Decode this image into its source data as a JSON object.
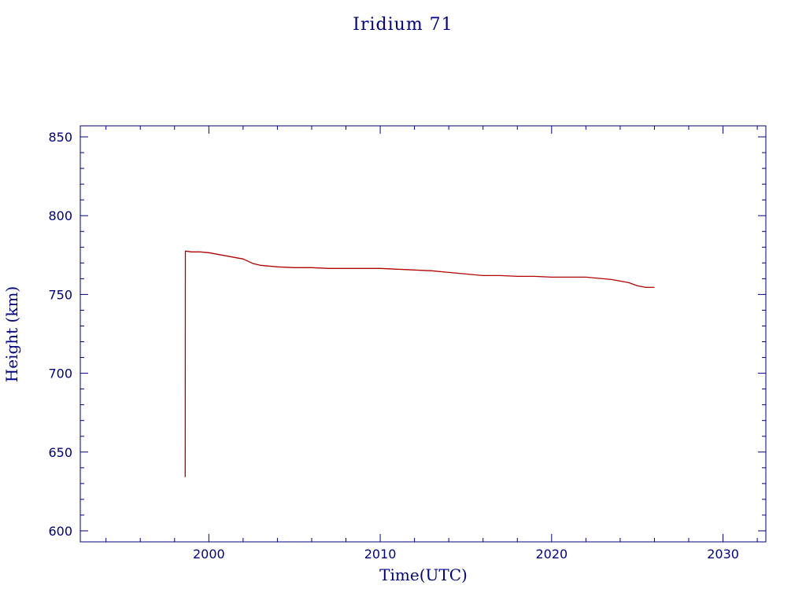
{
  "chart_data": {
    "type": "line",
    "title": "Iridium 71",
    "xlabel": "Time(UTC)",
    "ylabel": "Height (km)",
    "xlim": [
      1992.5,
      2032.5
    ],
    "ylim": [
      593,
      857
    ],
    "x_ticks": [
      2000,
      2010,
      2020,
      2030
    ],
    "x_tick_labels": [
      "2000",
      "2010",
      "2020",
      "2030"
    ],
    "y_ticks": [
      600,
      650,
      700,
      750,
      800,
      850
    ],
    "y_tick_labels": [
      "600",
      "650",
      "700",
      "750",
      "800",
      "850"
    ],
    "grid": false,
    "legend": "none",
    "colors": {
      "axes": "#000080",
      "series": "#b00000"
    },
    "series": [
      {
        "x": [
          1998.62,
          1998.63,
          1998.65,
          1999.0,
          1999.5,
          2000.0,
          2000.5,
          2001.0,
          2001.5,
          2002.0,
          2002.3,
          2002.6,
          2003.0,
          2003.5,
          2004.0,
          2005.0,
          2006.0,
          2007.0,
          2008.0,
          2009.0,
          2010.0,
          2011.0,
          2012.0,
          2013.0,
          2014.0,
          2015.0,
          2016.0,
          2017.0,
          2018.0,
          2019.0,
          2020.0,
          2021.0,
          2022.0,
          2023.0,
          2023.5,
          2024.0,
          2024.5,
          2025.0,
          2025.5,
          2026.0
        ],
        "y": [
          634,
          777.5,
          777.5,
          777,
          777,
          776.5,
          775.5,
          774.5,
          773.5,
          772.5,
          771,
          769.5,
          768.5,
          768,
          767.5,
          767,
          767,
          766.5,
          766.5,
          766.5,
          766.5,
          766,
          765.5,
          765,
          764,
          763,
          762,
          762,
          761.5,
          761.5,
          761,
          761,
          761,
          760,
          759.5,
          758.5,
          757.5,
          755.5,
          754.5,
          754.5
        ]
      }
    ]
  }
}
